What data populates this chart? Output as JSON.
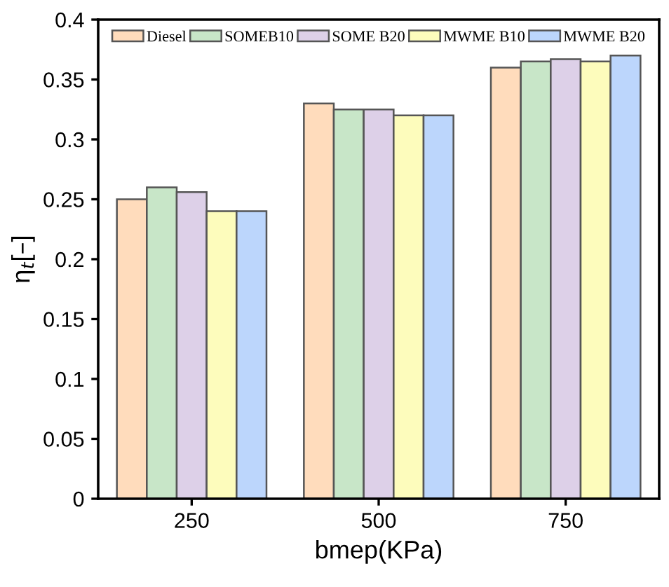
{
  "chart_data": {
    "type": "bar",
    "xlabel": "bmep(KPa)",
    "ylabel": "η$_{t}$[–]",
    "categories": [
      "250",
      "500",
      "750"
    ],
    "series": [
      {
        "name": "Diesel",
        "color": "#ffdcbc",
        "values": [
          0.25,
          0.33,
          0.36
        ]
      },
      {
        "name": "SOMEB10",
        "color": "#c8e6c8",
        "values": [
          0.26,
          0.325,
          0.365
        ]
      },
      {
        "name": "SOME B20",
        "color": "#ddd0e8",
        "values": [
          0.256,
          0.325,
          0.367
        ]
      },
      {
        "name": "MWME B10",
        "color": "#fdfcbc",
        "values": [
          0.24,
          0.32,
          0.365
        ]
      },
      {
        "name": "MWME B20",
        "color": "#bcd6fc",
        "values": [
          0.24,
          0.32,
          0.37
        ]
      }
    ],
    "ylim": [
      0,
      0.4
    ],
    "yticks": [
      0,
      0.05,
      0.1,
      0.15,
      0.2,
      0.25,
      0.3,
      0.35,
      0.4
    ],
    "grid": false,
    "legend": "top"
  }
}
